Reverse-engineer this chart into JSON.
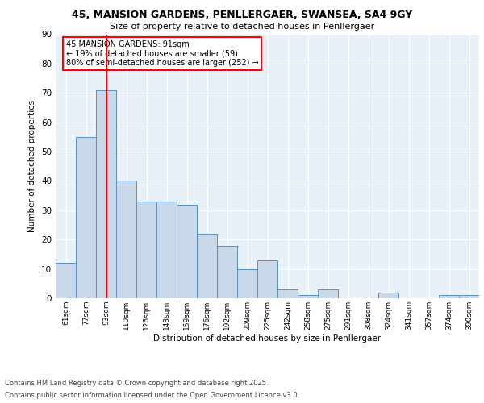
{
  "title_line1": "45, MANSION GARDENS, PENLLERGAER, SWANSEA, SA4 9GY",
  "title_line2": "Size of property relative to detached houses in Penllergaer",
  "xlabel": "Distribution of detached houses by size in Penllergaer",
  "ylabel": "Number of detached properties",
  "categories": [
    "61sqm",
    "77sqm",
    "93sqm",
    "110sqm",
    "126sqm",
    "143sqm",
    "159sqm",
    "176sqm",
    "192sqm",
    "209sqm",
    "225sqm",
    "242sqm",
    "258sqm",
    "275sqm",
    "291sqm",
    "308sqm",
    "324sqm",
    "341sqm",
    "357sqm",
    "374sqm",
    "390sqm"
  ],
  "values": [
    12,
    55,
    71,
    40,
    33,
    33,
    32,
    22,
    18,
    10,
    13,
    3,
    1,
    3,
    0,
    0,
    2,
    0,
    0,
    1,
    1
  ],
  "bar_color": "#c8d8e8",
  "bar_edge_color": "#5a8fc0",
  "red_line_index": 2,
  "annotation_text": "45 MANSION GARDENS: 91sqm\n← 19% of detached houses are smaller (59)\n80% of semi-detached houses are larger (252) →",
  "annotation_box_color": "white",
  "annotation_box_edge_color": "red",
  "red_line_color": "red",
  "background_color": "#e8f0f8",
  "grid_color": "white",
  "ylim": [
    0,
    90
  ],
  "yticks": [
    0,
    10,
    20,
    30,
    40,
    50,
    60,
    70,
    80,
    90
  ],
  "footer_line1": "Contains HM Land Registry data © Crown copyright and database right 2025.",
  "footer_line2": "Contains public sector information licensed under the Open Government Licence v3.0."
}
